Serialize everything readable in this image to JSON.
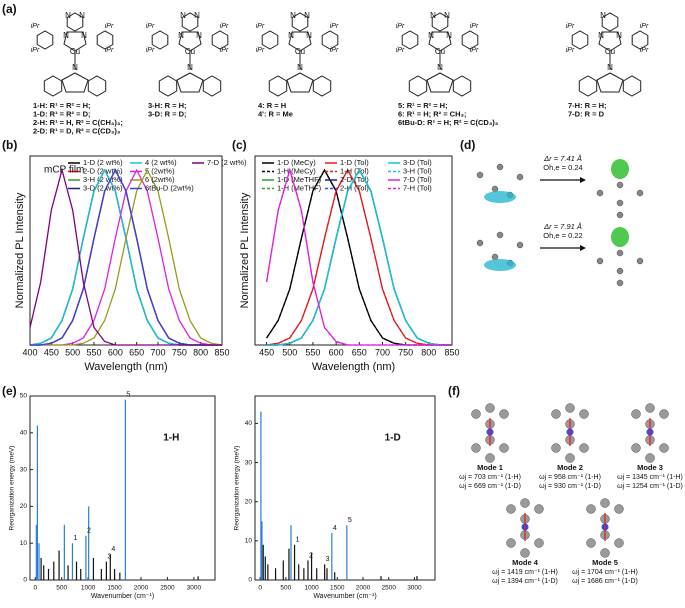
{
  "panel_labels": [
    "(a)",
    "(b)",
    "(c)",
    "(d)",
    "(e)",
    "(f)"
  ],
  "structures": [
    {
      "atoms": [
        "N",
        "N",
        "N",
        "N",
        "Cu",
        "N",
        "iPr",
        "iPr",
        "iPr",
        "iPr"
      ],
      "captions": [
        "1-H: R¹ = R² = H;",
        "1-D: R¹ = R² = D;",
        "2-H: R¹ = H, R² = C(CH₃)₃;",
        "2-D: R¹ = D, R² = C(CD₃)₃"
      ]
    },
    {
      "atoms": [
        "N",
        "N",
        "N",
        "N",
        "Cu",
        "N",
        "iPr",
        "iPr",
        "iPr",
        "iPr"
      ],
      "captions": [
        "3-H: R = H;",
        "3-D: R = D;"
      ]
    },
    {
      "atoms": [
        "N",
        "N",
        "N",
        "N",
        "Cu",
        "N",
        "iPr",
        "iPr",
        "iPr",
        "iPr"
      ],
      "captions": [
        "4: R = H",
        "4': R = Me"
      ]
    },
    {
      "atoms": [
        "N",
        "N",
        "N",
        "N",
        "Cu",
        "N",
        "iPr",
        "iPr",
        "iPr",
        "iPr"
      ],
      "captions": [
        "5: R¹ = R² = H;",
        "6: R¹ = H; R² = CH₃;",
        "6tBu-D: R¹ = H; R² = C(CD₃)₃"
      ]
    },
    {
      "atoms": [
        "N",
        "N",
        "N",
        "Cu",
        "N",
        "iPr",
        "iPr",
        "iPr",
        "iPr"
      ],
      "captions": [
        "7-H: R = H;",
        "7-D: R = D"
      ]
    }
  ],
  "chart_data": [
    {
      "type": "line",
      "annotation": "mCP film",
      "xlabel": "Wavelength (nm)",
      "ylabel": "Normalized PL Intensity",
      "xlim": [
        400,
        850
      ],
      "xticks": [
        400,
        450,
        500,
        550,
        600,
        650,
        700,
        750,
        800,
        850
      ],
      "ylim": [
        0,
        1.08
      ],
      "x": [
        400,
        425,
        450,
        475,
        500,
        525,
        550,
        575,
        600,
        625,
        650,
        675,
        700,
        725,
        750,
        775,
        800,
        825,
        850
      ],
      "series": [
        {
          "name": "1-D (2 wt%)",
          "color": "#000000",
          "values": [
            0,
            0,
            0.01,
            0.04,
            0.14,
            0.32,
            0.61,
            0.88,
            1,
            0.88,
            0.61,
            0.32,
            0.14,
            0.04,
            0.01,
            0,
            0,
            0,
            0
          ]
        },
        {
          "name": "2-D (2 wt%)",
          "color": "#e41a1c",
          "values": [
            0,
            0,
            0.01,
            0.04,
            0.14,
            0.32,
            0.61,
            0.88,
            1,
            0.88,
            0.61,
            0.32,
            0.14,
            0.04,
            0.01,
            0,
            0,
            0,
            0
          ]
        },
        {
          "name": "3-H (2 wt%)",
          "color": "#2ca02c",
          "values": [
            0,
            0.01,
            0.04,
            0.14,
            0.32,
            0.61,
            0.88,
            1,
            0.88,
            0.61,
            0.32,
            0.14,
            0.04,
            0.01,
            0,
            0,
            0,
            0,
            0
          ]
        },
        {
          "name": "3-D (2 wt%)",
          "color": "#1a237e",
          "values": [
            0,
            0.01,
            0.04,
            0.14,
            0.32,
            0.61,
            0.88,
            1,
            0.88,
            0.61,
            0.32,
            0.14,
            0.04,
            0.01,
            0,
            0,
            0,
            0,
            0
          ]
        },
        {
          "name": "4 (2 wt%)",
          "color": "#17c5d8",
          "values": [
            0,
            0.01,
            0.04,
            0.14,
            0.32,
            0.61,
            0.88,
            1,
            0.88,
            0.61,
            0.32,
            0.14,
            0.04,
            0.01,
            0,
            0,
            0,
            0,
            0
          ]
        },
        {
          "name": "5 (2wt%)",
          "color": "#e020e0",
          "values": [
            0,
            0,
            0,
            0,
            0.01,
            0.04,
            0.14,
            0.32,
            0.61,
            0.88,
            1,
            0.88,
            0.61,
            0.32,
            0.14,
            0.04,
            0.01,
            0,
            0
          ]
        },
        {
          "name": "6 (2wt%)",
          "color": "#9a9a1e",
          "values": [
            0,
            0,
            0,
            0,
            0,
            0.01,
            0.04,
            0.14,
            0.32,
            0.61,
            0.88,
            1,
            0.88,
            0.61,
            0.32,
            0.14,
            0.04,
            0.01,
            0
          ]
        },
        {
          "name": "6tBu-D (2wt%)",
          "color": "#3344ee",
          "values": [
            0,
            0,
            0.01,
            0.04,
            0.14,
            0.32,
            0.61,
            0.88,
            1,
            0.88,
            0.61,
            0.32,
            0.14,
            0.04,
            0.01,
            0,
            0,
            0,
            0
          ]
        },
        {
          "name": "7-D (2 wt%)",
          "color": "#800080",
          "values": [
            0.1,
            0.36,
            0.77,
            1,
            0.77,
            0.36,
            0.1,
            0.02,
            0,
            0,
            0,
            0,
            0,
            0,
            0,
            0,
            0,
            0,
            0
          ]
        }
      ]
    },
    {
      "type": "line",
      "xlabel": "Wavelength (nm)",
      "ylabel": "Normalized PL Intensity",
      "xlim": [
        425,
        850
      ],
      "xticks": [
        450,
        500,
        550,
        600,
        650,
        700,
        750,
        800,
        850
      ],
      "ylim": [
        0,
        1.08
      ],
      "x": [
        450,
        475,
        500,
        525,
        550,
        575,
        600,
        625,
        650,
        675,
        700,
        725,
        750,
        775,
        800,
        825,
        850
      ],
      "series": [
        {
          "name": "1-D (MeCy)",
          "color": "#000000",
          "dash": false,
          "values": [
            0.04,
            0.14,
            0.32,
            0.61,
            0.88,
            1,
            0.88,
            0.61,
            0.32,
            0.14,
            0.04,
            0.01,
            0,
            0,
            0,
            0,
            0
          ]
        },
        {
          "name": "1-H (MeCy)",
          "color": "#000000",
          "dash": true,
          "values": [
            0.04,
            0.14,
            0.32,
            0.61,
            0.88,
            1,
            0.88,
            0.61,
            0.32,
            0.14,
            0.04,
            0.01,
            0,
            0,
            0,
            0,
            0
          ]
        },
        {
          "name": "1-D (MeTHF)",
          "color": "#2ca02c",
          "dash": false,
          "values": [
            0,
            0,
            0.01,
            0.04,
            0.14,
            0.32,
            0.61,
            0.88,
            1,
            0.88,
            0.61,
            0.32,
            0.14,
            0.04,
            0.01,
            0,
            0
          ]
        },
        {
          "name": "1-H (MeTHF)",
          "color": "#2ca02c",
          "dash": true,
          "values": [
            0,
            0,
            0.01,
            0.04,
            0.14,
            0.32,
            0.61,
            0.88,
            1,
            0.88,
            0.61,
            0.32,
            0.14,
            0.04,
            0.01,
            0,
            0
          ]
        },
        {
          "name": "1-D (Tol)",
          "color": "#e41a1c",
          "dash": false,
          "values": [
            0,
            0.01,
            0.04,
            0.14,
            0.32,
            0.61,
            0.88,
            1,
            0.88,
            0.61,
            0.32,
            0.14,
            0.04,
            0.01,
            0,
            0,
            0
          ]
        },
        {
          "name": "1-H (Tol)",
          "color": "#e41a1c",
          "dash": true,
          "values": [
            0,
            0.01,
            0.04,
            0.14,
            0.32,
            0.61,
            0.88,
            1,
            0.88,
            0.61,
            0.32,
            0.14,
            0.04,
            0.01,
            0,
            0,
            0
          ]
        },
        {
          "name": "2-D (Tol)",
          "color": "#1a237e",
          "dash": false,
          "values": [
            0,
            0,
            0.01,
            0.04,
            0.14,
            0.32,
            0.61,
            0.88,
            1,
            0.88,
            0.61,
            0.32,
            0.14,
            0.04,
            0.01,
            0,
            0
          ]
        },
        {
          "name": "2-H (Tol)",
          "color": "#2255ee",
          "dash": true,
          "values": [
            0,
            0,
            0.01,
            0.04,
            0.14,
            0.32,
            0.61,
            0.88,
            1,
            0.88,
            0.61,
            0.32,
            0.14,
            0.04,
            0.01,
            0,
            0
          ]
        },
        {
          "name": "3-D (Tol)",
          "color": "#17c5d8",
          "dash": false,
          "values": [
            0,
            0,
            0.01,
            0.04,
            0.14,
            0.32,
            0.61,
            0.88,
            1,
            0.88,
            0.61,
            0.32,
            0.14,
            0.04,
            0.01,
            0,
            0
          ]
        },
        {
          "name": "3-H (Tol)",
          "color": "#17c5d8",
          "dash": true,
          "values": [
            0,
            0,
            0.01,
            0.04,
            0.14,
            0.32,
            0.61,
            0.88,
            1,
            0.88,
            0.61,
            0.32,
            0.14,
            0.04,
            0.01,
            0,
            0
          ]
        },
        {
          "name": "7-D (Tol)",
          "color": "#e020e0",
          "dash": false,
          "values": [
            0.36,
            0.77,
            1,
            0.77,
            0.36,
            0.1,
            0.02,
            0,
            0,
            0,
            0,
            0,
            0,
            0,
            0,
            0,
            0
          ]
        },
        {
          "name": "7-H (Tol)",
          "color": "#e020e0",
          "dash": true,
          "values": [
            0.36,
            0.77,
            1,
            0.77,
            0.36,
            0.1,
            0.02,
            0,
            0,
            0,
            0,
            0,
            0,
            0,
            0,
            0,
            0
          ]
        }
      ]
    },
    {
      "type": "stick",
      "annotation": "1-H",
      "xlabel": "Wavenumber (cm⁻¹)",
      "ylabel": "Reorganization energy (meV)",
      "color": "#2a7fd4",
      "xlim": [
        -100,
        3400
      ],
      "xticks": [
        0,
        500,
        1000,
        1500,
        2000,
        2500,
        3000
      ],
      "ylim": [
        0,
        50
      ],
      "yticks": [
        0,
        10,
        20,
        30,
        40,
        50
      ],
      "x": [
        20,
        40,
        70,
        110,
        160,
        250,
        350,
        450,
        550,
        620,
        703,
        780,
        860,
        958,
        1010,
        1100,
        1250,
        1345,
        1419,
        1500,
        1600,
        1704,
        3080
      ],
      "values": [
        15,
        42,
        10,
        6,
        4,
        3,
        5,
        8,
        15,
        4,
        10,
        5,
        3,
        12,
        20,
        6,
        3,
        5,
        7,
        3,
        2,
        49,
        1
      ],
      "mode_labels": {
        "text": [
          "1",
          "2",
          "3",
          "4",
          "5"
        ],
        "x": [
          703,
          958,
          1345,
          1419,
          1704
        ]
      }
    },
    {
      "type": "stick",
      "annotation": "1-D",
      "xlabel": "Wavenumber (cm⁻¹)",
      "ylabel": "Reorganization energy (meV)",
      "color": "#2a7fd4",
      "xlim": [
        -100,
        3400
      ],
      "xticks": [
        0,
        500,
        1000,
        1500,
        2000,
        2500,
        3000
      ],
      "ylim": [
        0,
        47
      ],
      "yticks": [
        0,
        10,
        20,
        30,
        40
      ],
      "x": [
        15,
        35,
        60,
        100,
        150,
        300,
        450,
        560,
        600,
        669,
        750,
        850,
        930,
        1000,
        1100,
        1254,
        1300,
        1394,
        1450,
        1686,
        2350,
        3050
      ],
      "values": [
        43,
        15,
        9,
        6,
        4,
        3,
        5,
        8,
        14,
        9,
        4,
        3,
        5,
        7,
        3,
        4,
        3,
        12,
        2,
        14,
        1,
        1
      ],
      "mode_labels": {
        "text": [
          "1",
          "2",
          "3",
          "4",
          "5"
        ],
        "x": [
          669,
          930,
          1254,
          1394,
          1686
        ]
      }
    }
  ],
  "panel_d": [
    {
      "dr": "Δr = 7.41 Å",
      "ohe": "Oh,e = 0.24"
    },
    {
      "dr": "Δr = 7.91 Å",
      "ohe": "Oh,e = 0.22"
    }
  ],
  "panel_f": [
    {
      "name": "Mode 1",
      "h": "ωj = 703 cm⁻¹ (1-H)",
      "d": "ωj = 669 cm⁻¹ (1-D)"
    },
    {
      "name": "Mode 2",
      "h": "ωj = 958 cm⁻¹ (1-H)",
      "d": "ωj = 930 cm⁻¹ (1-D)"
    },
    {
      "name": "Mode 3",
      "h": "ωj = 1345 cm⁻¹ (1-H)",
      "d": "ωj = 1254 cm⁻¹ (1-D)"
    },
    {
      "name": "Mode 4",
      "h": "ωj = 1419 cm⁻¹ (1-H)",
      "d": "ωj = 1394 cm⁻¹ (1-D)"
    },
    {
      "name": "Mode 5",
      "h": "ωj = 1704 cm⁻¹ (1-H)",
      "d": "ωj = 1686 cm⁻¹ (1-D)"
    }
  ]
}
